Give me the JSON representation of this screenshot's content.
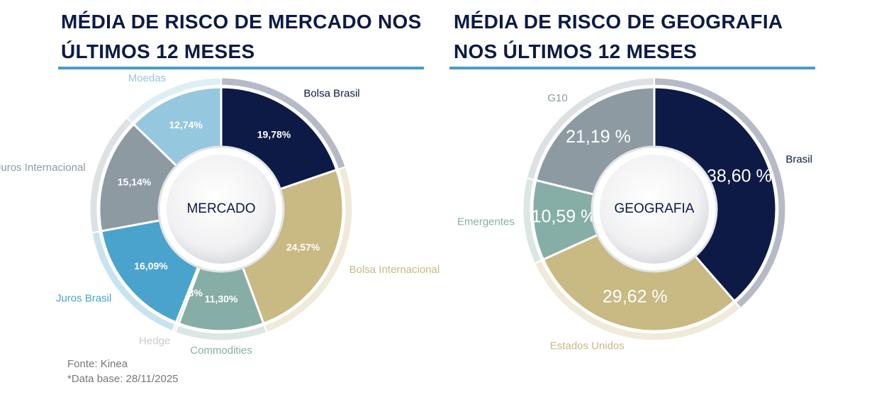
{
  "chart_data": [
    {
      "type": "pie",
      "title": "MÉDIA DE RISCO DE MERCADO NOS ÚLTIMOS 12 MESES",
      "center_label": "MERCADO",
      "categories": [
        "Bolsa Brasil",
        "Bolsa Internacional",
        "Commodities",
        "Hedge",
        "Juros Brasil",
        "Juros Internacional",
        "Moedas"
      ],
      "values": [
        19.78,
        24.57,
        11.3,
        0.38,
        16.09,
        15.14,
        12.74
      ],
      "value_labels": [
        "19,78%",
        "24,57%",
        "11,30%",
        "0,38%",
        "16,09%",
        "15,14%",
        "12,74%"
      ],
      "colors": [
        "#0c1a45",
        "#c9b982",
        "#86aea6",
        "#c9cbcd",
        "#4aa3cc",
        "#8d9aa2",
        "#95c8de"
      ]
    },
    {
      "type": "pie",
      "title": "MÉDIA DE RISCO DE GEOGRAFIA NOS ÚLTIMOS 12 MESES",
      "center_label": "GEOGRAFIA",
      "categories": [
        "Brasil",
        "Estados Unidos",
        "Emergentes",
        "G10"
      ],
      "values": [
        38.6,
        29.62,
        10.59,
        21.19
      ],
      "value_labels": [
        "38,60 %",
        "29,62 %",
        "10,59 %",
        "21,19 %"
      ],
      "colors": [
        "#0c1a45",
        "#c9b982",
        "#86aea6",
        "#8d9aa2"
      ]
    }
  ],
  "footer": {
    "source": "Fonte: Kinea",
    "date_base": "*Data base: 28/11/2025"
  }
}
